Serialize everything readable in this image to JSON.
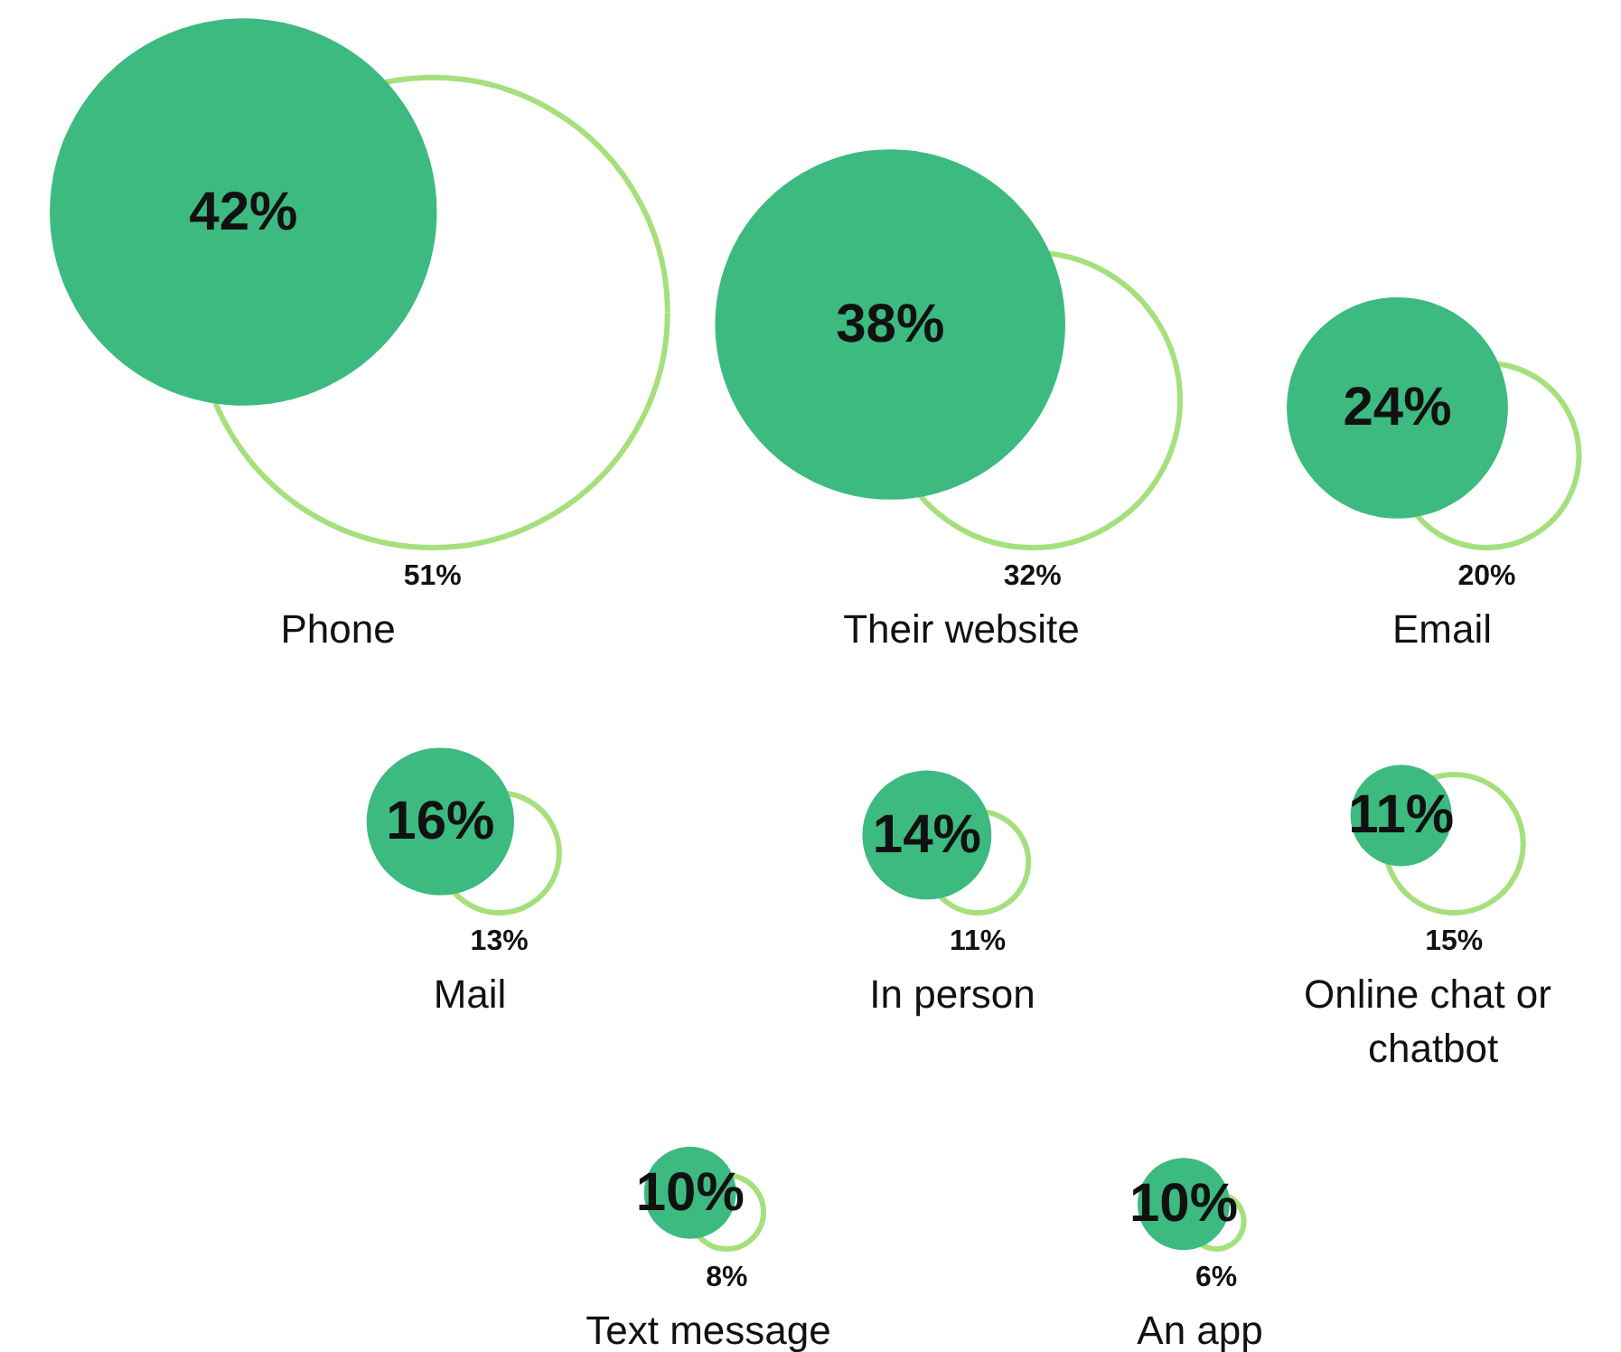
{
  "chart_data": {
    "type": "other",
    "categories": [
      "Phone",
      "Their website",
      "Email",
      "Mail",
      "In person",
      "Online chat or chatbot",
      "Text message",
      "An app"
    ],
    "series": [
      {
        "color": "#3dba80",
        "values": [
          42,
          38,
          24,
          16,
          14,
          11,
          10,
          10
        ],
        "value_labels": [
          "42%",
          "38%",
          "24%",
          "16%",
          "14%",
          "11%",
          "10%",
          "10%"
        ]
      },
      {
        "color": "#a6e07d",
        "values": [
          51,
          32,
          20,
          13,
          11,
          15,
          8,
          6
        ],
        "value_labels": [
          "51%",
          "32%",
          "20%",
          "13%",
          "11%",
          "15%",
          "8%",
          "6%"
        ]
      }
    ]
  }
}
